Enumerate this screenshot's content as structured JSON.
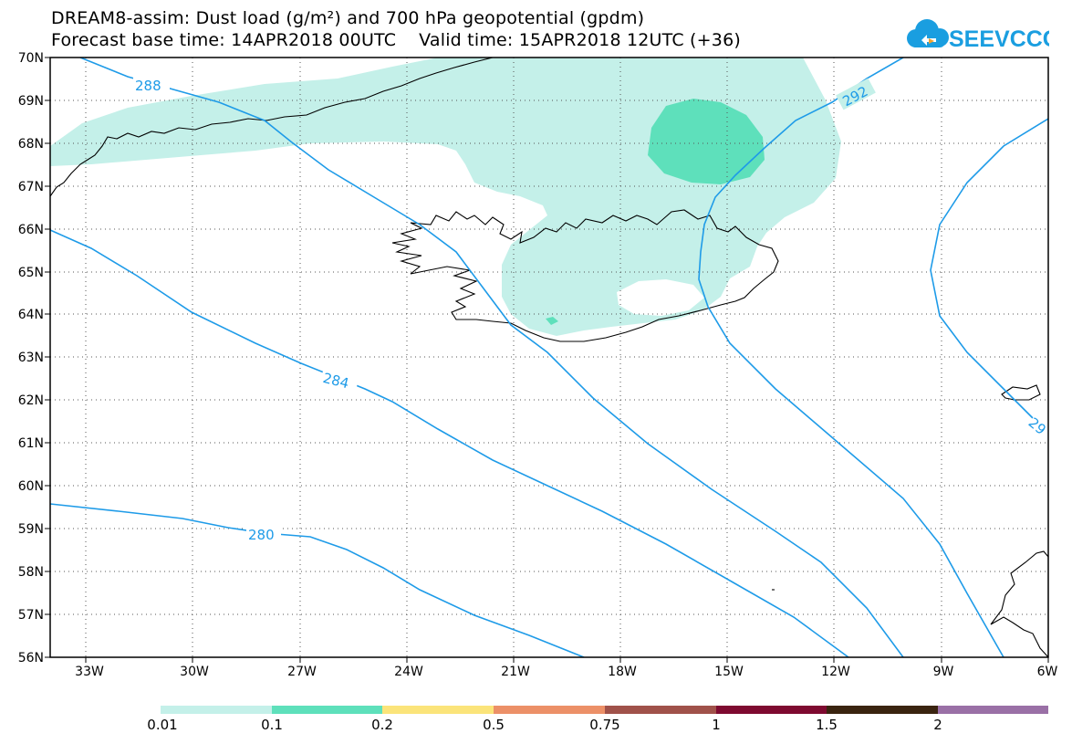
{
  "title": {
    "line1": "DREAM8-assim: Dust load (g/m²) and 700 hPa geopotential (gpdm)",
    "line2": "Forecast base time: 14APR2018 00UTC    Valid time: 15APR2018 12UTC (+36)"
  },
  "logo": {
    "text": "SEEVCCC",
    "icon": "cloud-icon",
    "color": "#1a9ee0"
  },
  "map": {
    "lat_labels": [
      "70N",
      "69N",
      "68N",
      "67N",
      "66N",
      "65N",
      "64N",
      "63N",
      "62N",
      "61N",
      "60N",
      "59N",
      "58N",
      "57N",
      "56N"
    ],
    "lon_labels": [
      "33W",
      "30W",
      "27W",
      "24W",
      "21W",
      "18W",
      "15W",
      "12W",
      "9W",
      "6W"
    ],
    "lat_range": [
      56,
      70
    ],
    "lon_range": [
      -34.5,
      -6
    ],
    "grid": "dotted",
    "dust_colors": [
      "#c4f0e9",
      "#5ee0bb"
    ],
    "contour_color": "#1e9be8",
    "contour_labels": [
      {
        "label": "288"
      },
      {
        "label": "292"
      },
      {
        "label": "284"
      },
      {
        "label": "280"
      },
      {
        "label": "29"
      }
    ]
  },
  "colorbar": {
    "colors": [
      "#c4f0e9",
      "#5ee0bb",
      "#fbe47a",
      "#ec9068",
      "#a0524a",
      "#7e0a30",
      "#3a2410",
      "#9a70a6"
    ],
    "labels": [
      "0.01",
      "0.1",
      "0.2",
      "0.5",
      "0.75",
      "1",
      "1.5",
      "2"
    ]
  }
}
